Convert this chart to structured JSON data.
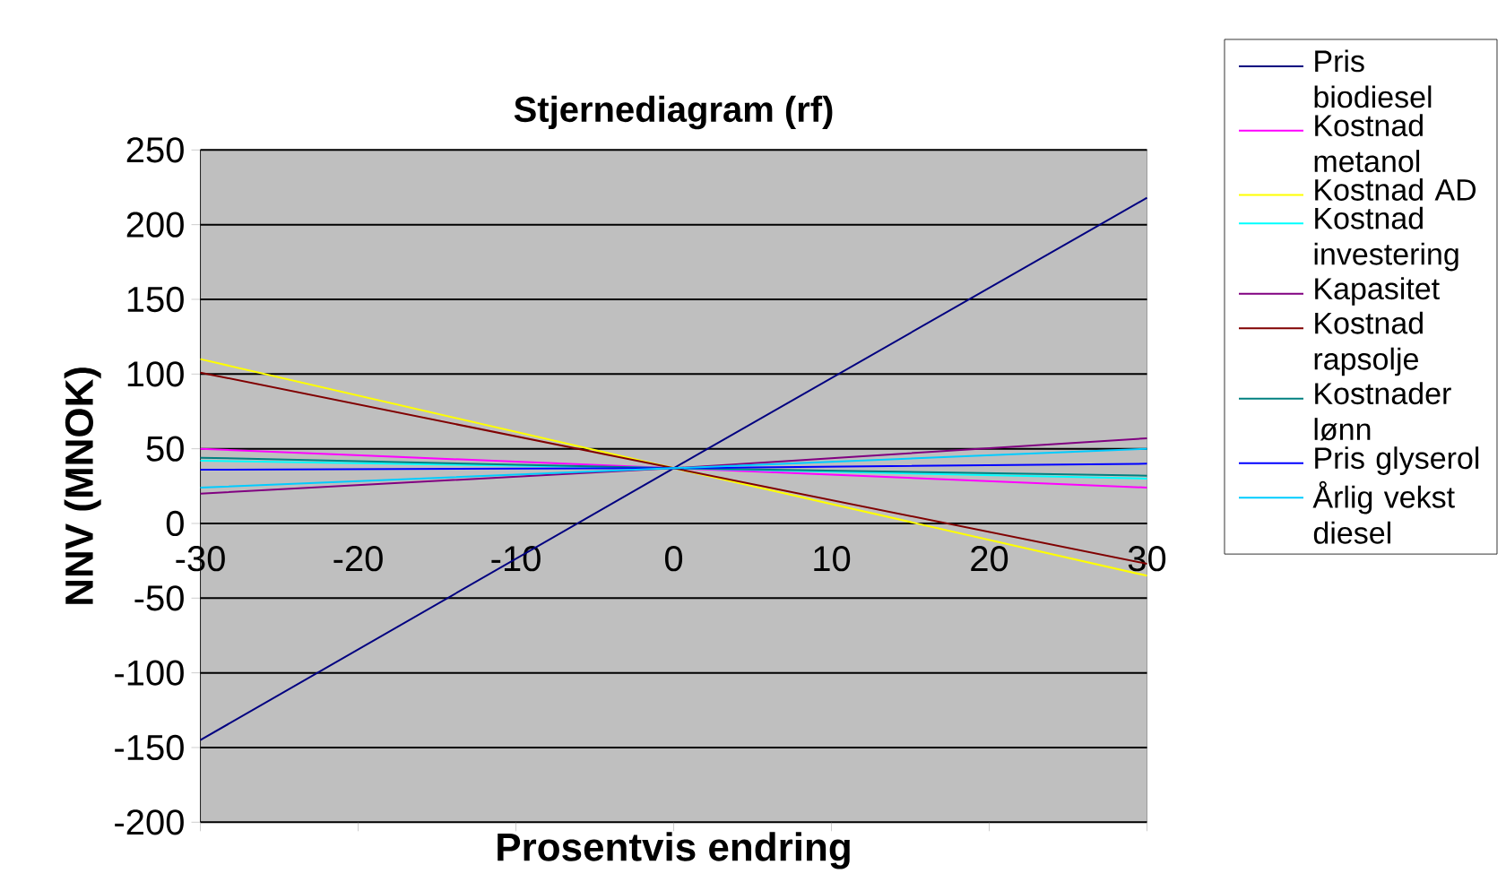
{
  "chart_data": {
    "type": "line",
    "title": "Stjernediagram (rf)",
    "xlabel": "Prosentvis endring",
    "ylabel": "NNV (MNOK)",
    "x": [
      -30,
      0,
      30
    ],
    "xlim": [
      -30,
      30
    ],
    "xticks": [
      -30,
      -20,
      -10,
      0,
      10,
      20,
      30
    ],
    "ylim": [
      -200,
      250
    ],
    "yticks": [
      -200,
      -150,
      -100,
      -50,
      0,
      50,
      100,
      150,
      200,
      250
    ],
    "grid": "y",
    "legend": "right",
    "marker": "none",
    "line_style": "solid",
    "series": [
      {
        "name": "Pris biodiesel",
        "color": "#000080",
        "values": [
          -145,
          37,
          218
        ]
      },
      {
        "name": "Kostnad metanol",
        "color": "#ff00ff",
        "values": [
          50,
          37,
          24
        ]
      },
      {
        "name": "Kostnad AD",
        "color": "#ffff00",
        "values": [
          110,
          37,
          -35
        ]
      },
      {
        "name": "Kostnad investering",
        "color": "#00ffff",
        "values": [
          42,
          37,
          30
        ]
      },
      {
        "name": "Kapasitet",
        "color": "#800080",
        "values": [
          20,
          37,
          57
        ]
      },
      {
        "name": "Kostnad rapsolje",
        "color": "#800000",
        "values": [
          101,
          37,
          -27
        ]
      },
      {
        "name": "Kostnader lønn",
        "color": "#008080",
        "values": [
          44,
          37,
          32
        ]
      },
      {
        "name": "Pris glyserol",
        "color": "#0000ff",
        "values": [
          36,
          37,
          40
        ]
      },
      {
        "name": "Årlig vekst diesel",
        "color": "#00ccff",
        "values": [
          24,
          37,
          50
        ]
      }
    ]
  }
}
